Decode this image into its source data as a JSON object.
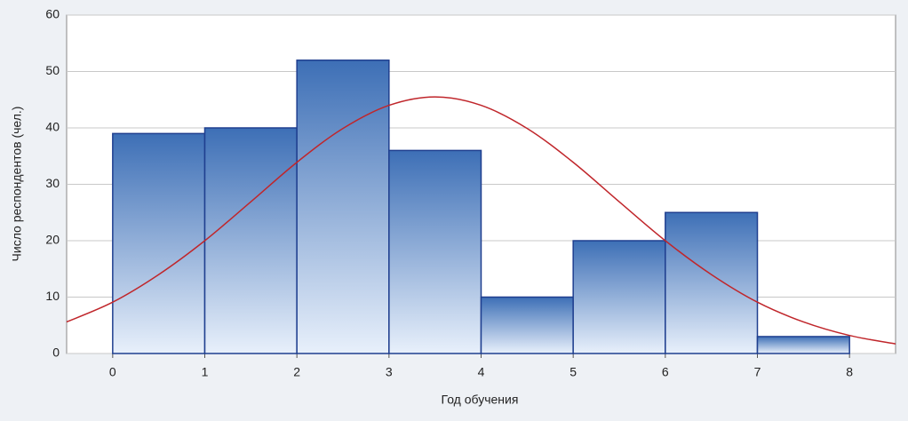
{
  "chart_data": {
    "type": "histogram",
    "xlabel": "Год обучения",
    "ylabel": "Число респондентов (чел.)",
    "bins": [
      0,
      1,
      2,
      3,
      4,
      5,
      6,
      7,
      8
    ],
    "counts": [
      39,
      40,
      52,
      36,
      10,
      20,
      25,
      3
    ],
    "color": "#3d6fb6",
    "edge_color": "#1f3f8f",
    "fit": {
      "color": "#c0262b",
      "x": [
        -0.5,
        0,
        0.5,
        1,
        1.5,
        2,
        2.5,
        3,
        3.5,
        4,
        4.5,
        5,
        5.5,
        6,
        6.5,
        7,
        7.5,
        8,
        8.5
      ],
      "values": [
        5.6,
        9.1,
        14.0,
        20.0,
        26.9,
        33.9,
        39.9,
        44.0,
        45.5,
        44.0,
        39.9,
        33.9,
        26.9,
        20.0,
        14.0,
        9.1,
        5.6,
        3.2,
        1.7
      ]
    },
    "xlim": [
      -0.5,
      8.5
    ],
    "xticks": [
      0,
      1,
      2,
      3,
      4,
      5,
      6,
      7,
      8
    ],
    "ylim": [
      0,
      60
    ],
    "yticks": [
      0,
      10,
      20,
      30,
      40,
      50,
      60
    ],
    "grid": true
  }
}
